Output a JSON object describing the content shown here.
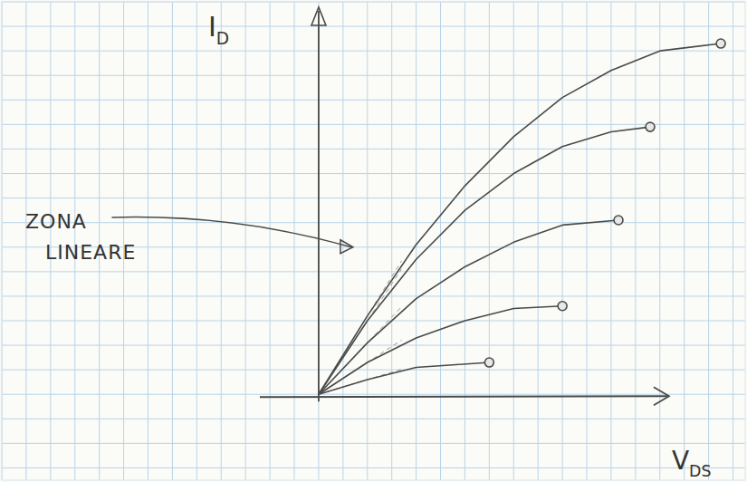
{
  "chart_data": {
    "type": "line",
    "ylabel": {
      "main": "I",
      "sub": "D"
    },
    "xlabel": {
      "main": "V",
      "sub": "DS"
    },
    "annotation": "ZONA LINEARE",
    "xlim": [
      -13,
      17.5
    ],
    "ylim": [
      -3.5,
      16
    ],
    "xticks": [
      -13,
      -12,
      -11,
      -10,
      -9,
      -8,
      -7,
      -6,
      -5,
      -4,
      -3,
      -2,
      -1,
      0,
      1,
      2,
      3,
      4,
      5,
      6,
      7,
      8,
      9,
      10,
      11,
      12,
      13,
      14,
      15,
      16,
      17
    ],
    "yticks": [
      -3,
      -2,
      -1,
      0,
      1,
      2,
      3,
      4,
      5,
      6,
      7,
      8,
      9,
      10,
      11,
      12,
      13,
      14,
      15,
      16
    ],
    "grid": true,
    "tick_labels": false,
    "color": "#4a4a4a",
    "marker": "circle",
    "line_style": "solid",
    "series": [
      {
        "x": [
          0,
          2,
          4,
          6,
          8,
          10,
          12,
          14,
          16.5
        ],
        "values": [
          0,
          3.2,
          6.1,
          8.5,
          10.5,
          12.1,
          13.2,
          14.0,
          14.3
        ]
      },
      {
        "x": [
          0,
          2,
          4,
          6,
          8,
          10,
          12,
          13.6
        ],
        "values": [
          0,
          3.0,
          5.5,
          7.5,
          9.0,
          10.1,
          10.7,
          10.9
        ]
      },
      {
        "x": [
          0,
          2,
          4,
          6,
          8,
          10,
          12.3
        ],
        "values": [
          0,
          2.1,
          3.9,
          5.2,
          6.2,
          6.9,
          7.1
        ]
      },
      {
        "x": [
          0,
          2,
          4,
          6,
          8,
          10
        ],
        "values": [
          0,
          1.3,
          2.3,
          3.0,
          3.5,
          3.6
        ]
      },
      {
        "x": [
          0,
          2,
          4,
          5.5,
          7
        ],
        "values": [
          0,
          0.6,
          1.1,
          1.2,
          1.3
        ]
      }
    ]
  }
}
